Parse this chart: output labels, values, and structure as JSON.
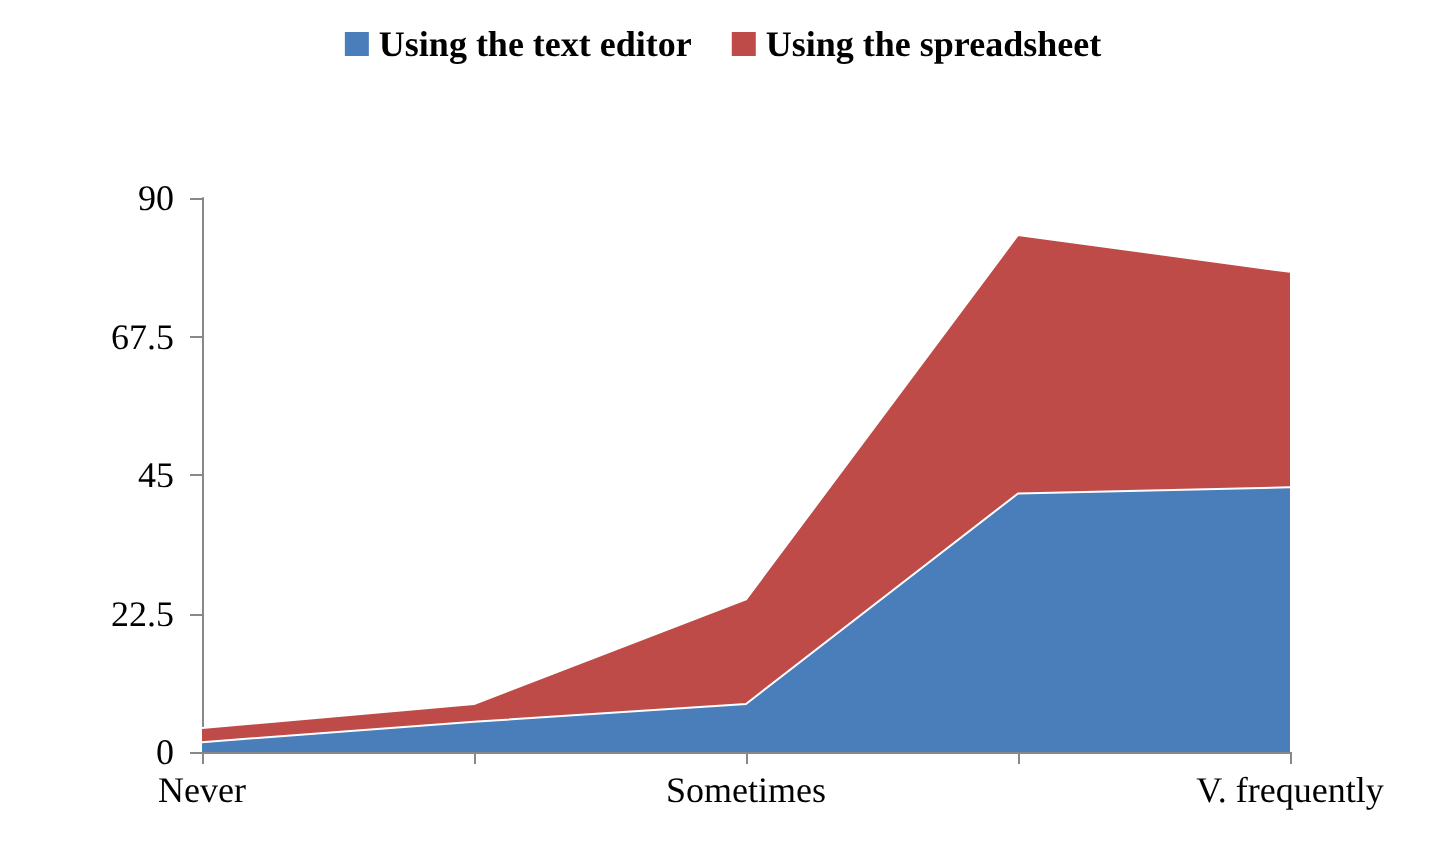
{
  "chart_data": {
    "type": "area",
    "stacked": true,
    "categories": [
      "Never",
      null,
      "Sometimes",
      null,
      "V. frequently"
    ],
    "series": [
      {
        "name": "Using the text editor",
        "color": "#4a7ebb",
        "values": [
          1.6,
          4.9,
          7.8,
          42,
          43
        ]
      },
      {
        "name": "Using the spreadsheet",
        "color": "#be4b48",
        "values": [
          2.3,
          2.9,
          17,
          42,
          35
        ]
      }
    ],
    "ylim": [
      0,
      90
    ],
    "yticks": [
      0,
      22.5,
      45,
      67.5,
      90
    ],
    "grid": false,
    "legend": "top"
  }
}
